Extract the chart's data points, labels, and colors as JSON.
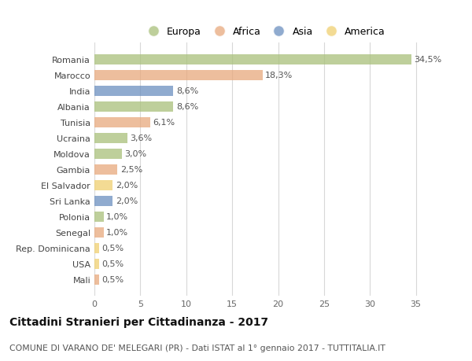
{
  "countries": [
    "Romania",
    "Marocco",
    "India",
    "Albania",
    "Tunisia",
    "Ucraina",
    "Moldova",
    "Gambia",
    "El Salvador",
    "Sri Lanka",
    "Polonia",
    "Senegal",
    "Rep. Dominicana",
    "USA",
    "Mali"
  ],
  "values": [
    34.5,
    18.3,
    8.6,
    8.6,
    6.1,
    3.6,
    3.0,
    2.5,
    2.0,
    2.0,
    1.0,
    1.0,
    0.5,
    0.5,
    0.5
  ],
  "labels": [
    "34,5%",
    "18,3%",
    "8,6%",
    "8,6%",
    "6,1%",
    "3,6%",
    "3,0%",
    "2,5%",
    "2,0%",
    "2,0%",
    "1,0%",
    "1,0%",
    "0,5%",
    "0,5%",
    "0,5%"
  ],
  "continents": [
    "Europa",
    "Africa",
    "Asia",
    "Europa",
    "Africa",
    "Europa",
    "Europa",
    "Africa",
    "America",
    "Asia",
    "Europa",
    "Africa",
    "America",
    "America",
    "Africa"
  ],
  "colors": {
    "Europa": "#a8c07a",
    "Africa": "#e8a87c",
    "Asia": "#6b8fbf",
    "America": "#f0d070"
  },
  "legend_order": [
    "Europa",
    "Africa",
    "Asia",
    "America"
  ],
  "bg_color": "#ffffff",
  "grid_color": "#d8d8d8",
  "title": "Cittadini Stranieri per Cittadinanza - 2017",
  "subtitle": "COMUNE DI VARANO DE' MELEGARI (PR) - Dati ISTAT al 1° gennaio 2017 - TUTTITALIA.IT",
  "xlim": [
    0,
    37
  ],
  "xticks": [
    0,
    5,
    10,
    15,
    20,
    25,
    30,
    35
  ],
  "bar_height": 0.65,
  "alpha": 0.75,
  "label_fontsize": 8.0,
  "ytick_fontsize": 8.0,
  "xtick_fontsize": 8.0,
  "title_fontsize": 10.0,
  "subtitle_fontsize": 7.8,
  "legend_fontsize": 9.0
}
